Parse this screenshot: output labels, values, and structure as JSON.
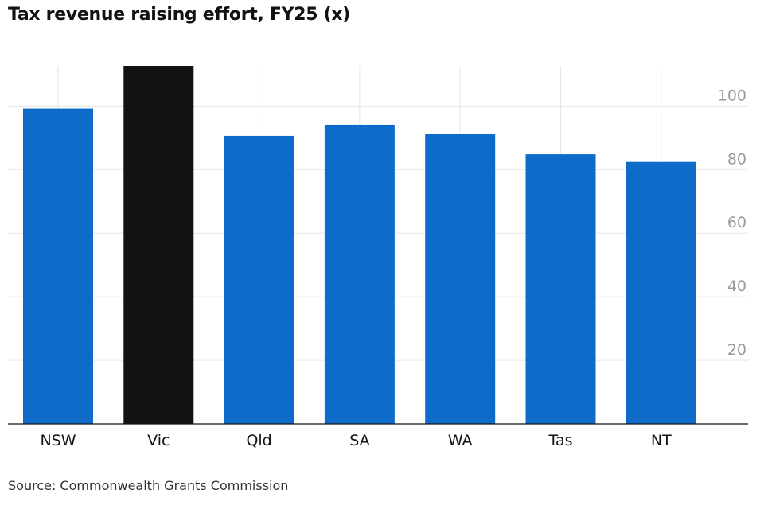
{
  "title": "Tax revenue raising effort, FY25 (x)",
  "source": "Source: Commonwealth Grants Commission",
  "chart_data": {
    "type": "bar",
    "title": "Tax revenue raising effort, FY25 (x)",
    "xlabel": "",
    "ylabel": "",
    "categories": [
      "NSW",
      "Vic",
      "Qld",
      "SA",
      "WA",
      "Tas",
      "NT"
    ],
    "values": [
      99.2,
      112.6,
      90.6,
      94.1,
      91.3,
      84.8,
      82.4
    ],
    "highlight": "Vic",
    "colors": {
      "default": "#0f6bc9",
      "highlight": "#121212"
    },
    "y_ticks": [
      20,
      40,
      60,
      80,
      100
    ],
    "ylim": [
      0,
      112.6
    ],
    "grid": true,
    "y_axis_position": "right"
  }
}
